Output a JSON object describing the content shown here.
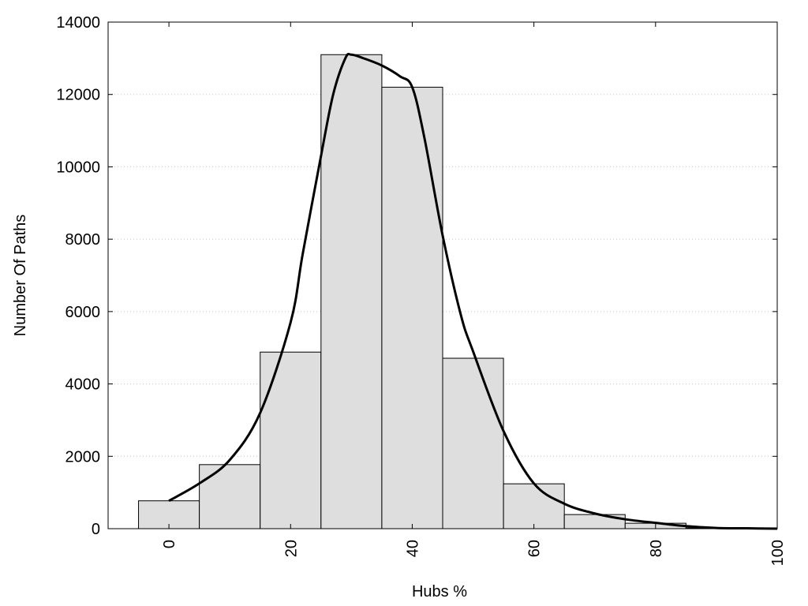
{
  "chart_data": {
    "type": "bar",
    "title": "",
    "xlabel": "Hubs %",
    "ylabel": "Number Of Paths",
    "xlim": [
      -10,
      100
    ],
    "ylim": [
      0,
      14000
    ],
    "xticks": [
      "0",
      "20",
      "40",
      "60",
      "80",
      "100"
    ],
    "yticks": [
      "0",
      "2000",
      "4000",
      "6000",
      "8000",
      "10000",
      "12000",
      "14000"
    ],
    "grid": "horizontal dotted",
    "legend": "none",
    "bar_fill": "#dedede",
    "bar_stroke": "#000000",
    "bins": [
      {
        "x": 0,
        "value": 770
      },
      {
        "x": 10,
        "value": 1770
      },
      {
        "x": 20,
        "value": 4880
      },
      {
        "x": 30,
        "value": 13100
      },
      {
        "x": 40,
        "value": 12200
      },
      {
        "x": 50,
        "value": 4710
      },
      {
        "x": 60,
        "value": 1240
      },
      {
        "x": 70,
        "value": 390
      },
      {
        "x": 80,
        "value": 150
      },
      {
        "x": 90,
        "value": 20
      }
    ],
    "bin_width": 10,
    "density_curve": {
      "color": "#000000",
      "x": [
        0,
        5,
        10,
        15,
        20,
        22,
        25,
        27,
        29,
        30,
        32,
        35,
        38,
        40,
        42,
        45,
        48,
        50,
        55,
        60,
        65,
        70,
        75,
        80,
        85,
        90,
        95,
        100
      ],
      "y": [
        770,
        1250,
        1900,
        3200,
        5700,
        7600,
        10300,
        12000,
        13000,
        13100,
        13000,
        12800,
        12500,
        12200,
        10800,
        8100,
        5900,
        4900,
        2700,
        1250,
        690,
        420,
        260,
        160,
        70,
        20,
        10,
        0
      ]
    }
  }
}
